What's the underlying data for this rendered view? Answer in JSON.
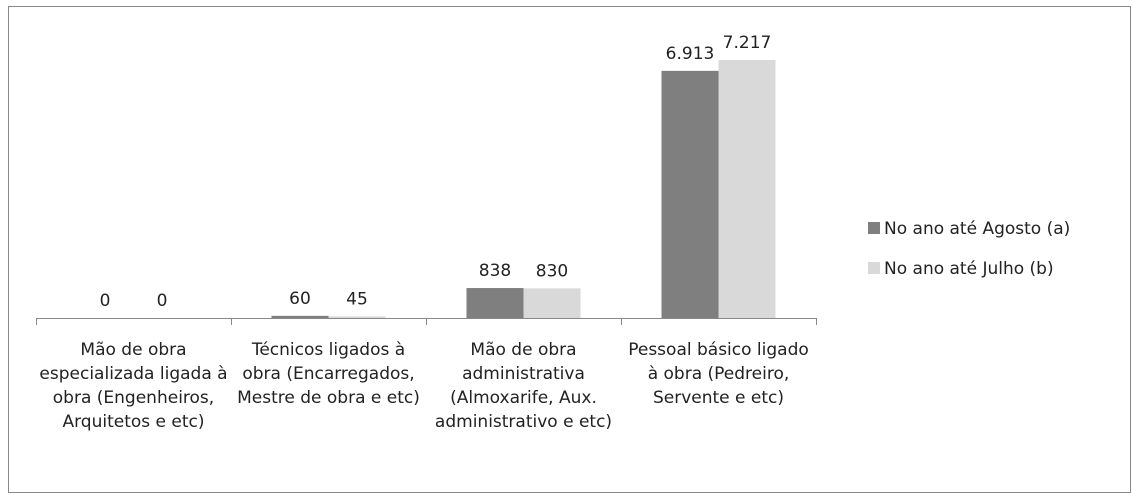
{
  "chart_data": {
    "type": "bar",
    "categories": [
      "Mão de obra especializada ligada à obra (Engenheiros, Arquitetos e etc)",
      "Técnicos ligados à obra (Encarregados, Mestre de obra e etc)",
      "Mão de obra administrativa (Almoxarife, Aux. administrativo e etc)",
      "Pessoal básico ligado à obra (Pedreiro, Servente e etc)"
    ],
    "series": [
      {
        "name": "No ano até Agosto (a)",
        "color": "#7f7f7f",
        "values": [
          0,
          60,
          838,
          6913
        ],
        "value_labels": [
          "0",
          "60",
          "838",
          "6.913"
        ]
      },
      {
        "name": "No ano até Julho (b)",
        "color": "#d9d9d9",
        "values": [
          0,
          45,
          830,
          7217
        ],
        "value_labels": [
          "0",
          "45",
          "830",
          "7.217"
        ]
      }
    ],
    "ylim": [
      0,
      8000
    ],
    "legend": "right"
  }
}
